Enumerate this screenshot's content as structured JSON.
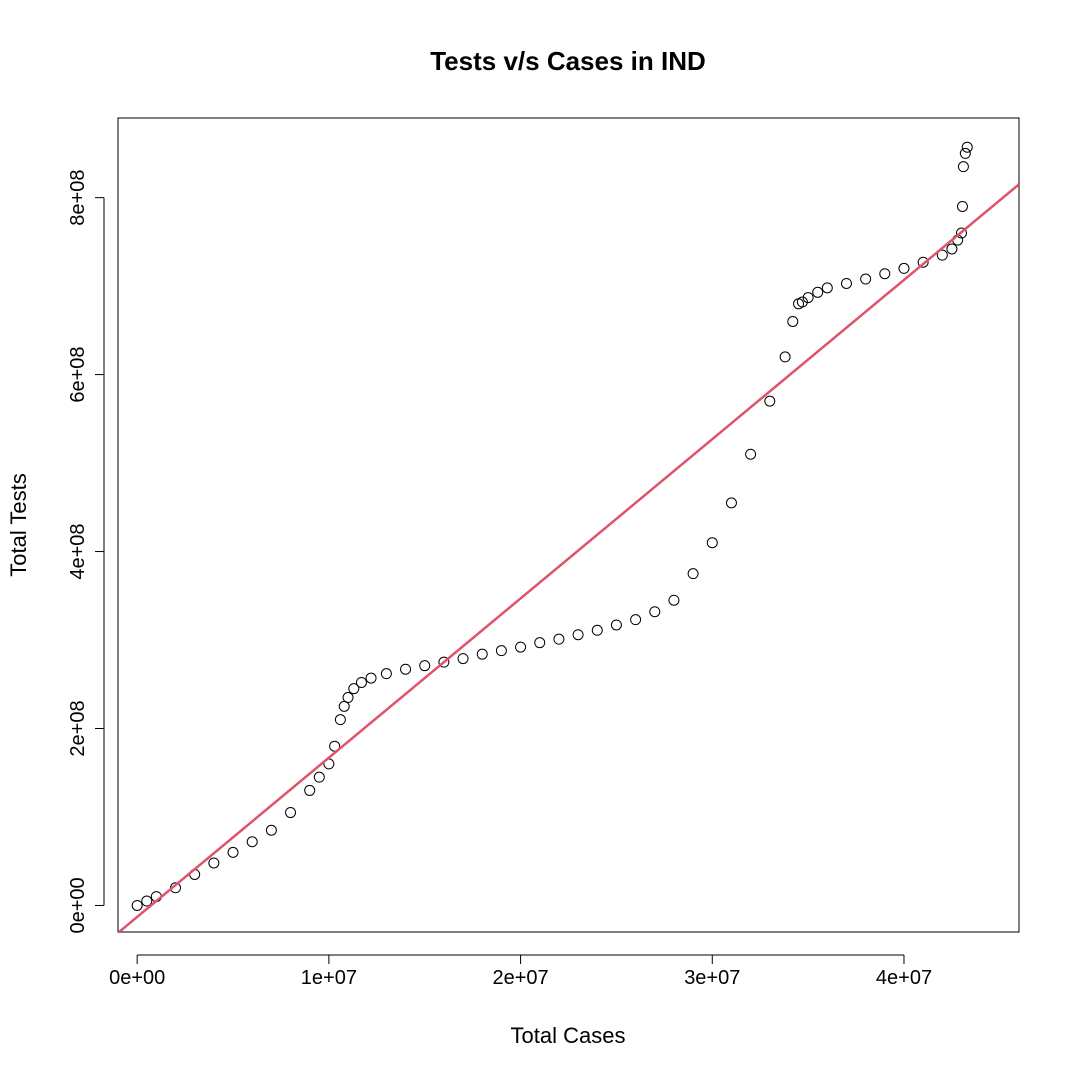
{
  "chart_data": {
    "type": "scatter",
    "title": "Tests v/s Cases in IND",
    "xlabel": "Total Cases",
    "ylabel": "Total Tests",
    "xlim": [
      -1000000,
      46000000
    ],
    "ylim": [
      -30000000,
      890000000
    ],
    "x_ticks": [
      {
        "value": 0,
        "label": "0e+00"
      },
      {
        "value": 10000000,
        "label": "1e+07"
      },
      {
        "value": 20000000,
        "label": "2e+07"
      },
      {
        "value": 30000000,
        "label": "3e+07"
      },
      {
        "value": 40000000,
        "label": "4e+07"
      }
    ],
    "y_ticks": [
      {
        "value": 0,
        "label": "0e+00"
      },
      {
        "value": 200000000,
        "label": "2e+08"
      },
      {
        "value": 400000000,
        "label": "4e+08"
      },
      {
        "value": 600000000,
        "label": "6e+08"
      },
      {
        "value": 800000000,
        "label": "8e+08"
      }
    ],
    "grid": false,
    "series": [
      {
        "marker": "open-circle",
        "color": "#000000",
        "x": [
          0,
          500000,
          1000000,
          2000000,
          3000000,
          4000000,
          5000000,
          6000000,
          7000000,
          8000000,
          9000000,
          9500000,
          10000000,
          10300000,
          10600000,
          10800000,
          11000000,
          11300000,
          11700000,
          12200000,
          13000000,
          14000000,
          15000000,
          16000000,
          17000000,
          18000000,
          19000000,
          20000000,
          21000000,
          22000000,
          23000000,
          24000000,
          25000000,
          26000000,
          27000000,
          28000000,
          29000000,
          30000000,
          31000000,
          32000000,
          33000000,
          33800000,
          34200000,
          34500000,
          34700000,
          35000000,
          35500000,
          36000000,
          37000000,
          38000000,
          39000000,
          40000000,
          41000000,
          42000000,
          42500000,
          42800000,
          43000000,
          43050000,
          43100000,
          43200000,
          43300000
        ],
        "y": [
          0,
          5000000,
          10000000,
          20000000,
          35000000,
          48000000,
          60000000,
          72000000,
          85000000,
          105000000,
          130000000,
          145000000,
          160000000,
          180000000,
          210000000,
          225000000,
          235000000,
          245000000,
          252000000,
          257000000,
          262000000,
          267000000,
          271000000,
          275000000,
          279000000,
          284000000,
          288000000,
          292000000,
          297000000,
          301000000,
          306000000,
          311000000,
          317000000,
          323000000,
          332000000,
          345000000,
          375000000,
          410000000,
          455000000,
          510000000,
          570000000,
          620000000,
          660000000,
          680000000,
          682000000,
          687000000,
          693000000,
          698000000,
          703000000,
          708000000,
          714000000,
          720000000,
          727000000,
          735000000,
          742000000,
          752000000,
          760000000,
          790000000,
          835000000,
          850000000,
          857000000
        ]
      }
    ],
    "fit_line": {
      "color": "#DF536B",
      "intercept": -13000000,
      "slope": 18.0
    }
  }
}
